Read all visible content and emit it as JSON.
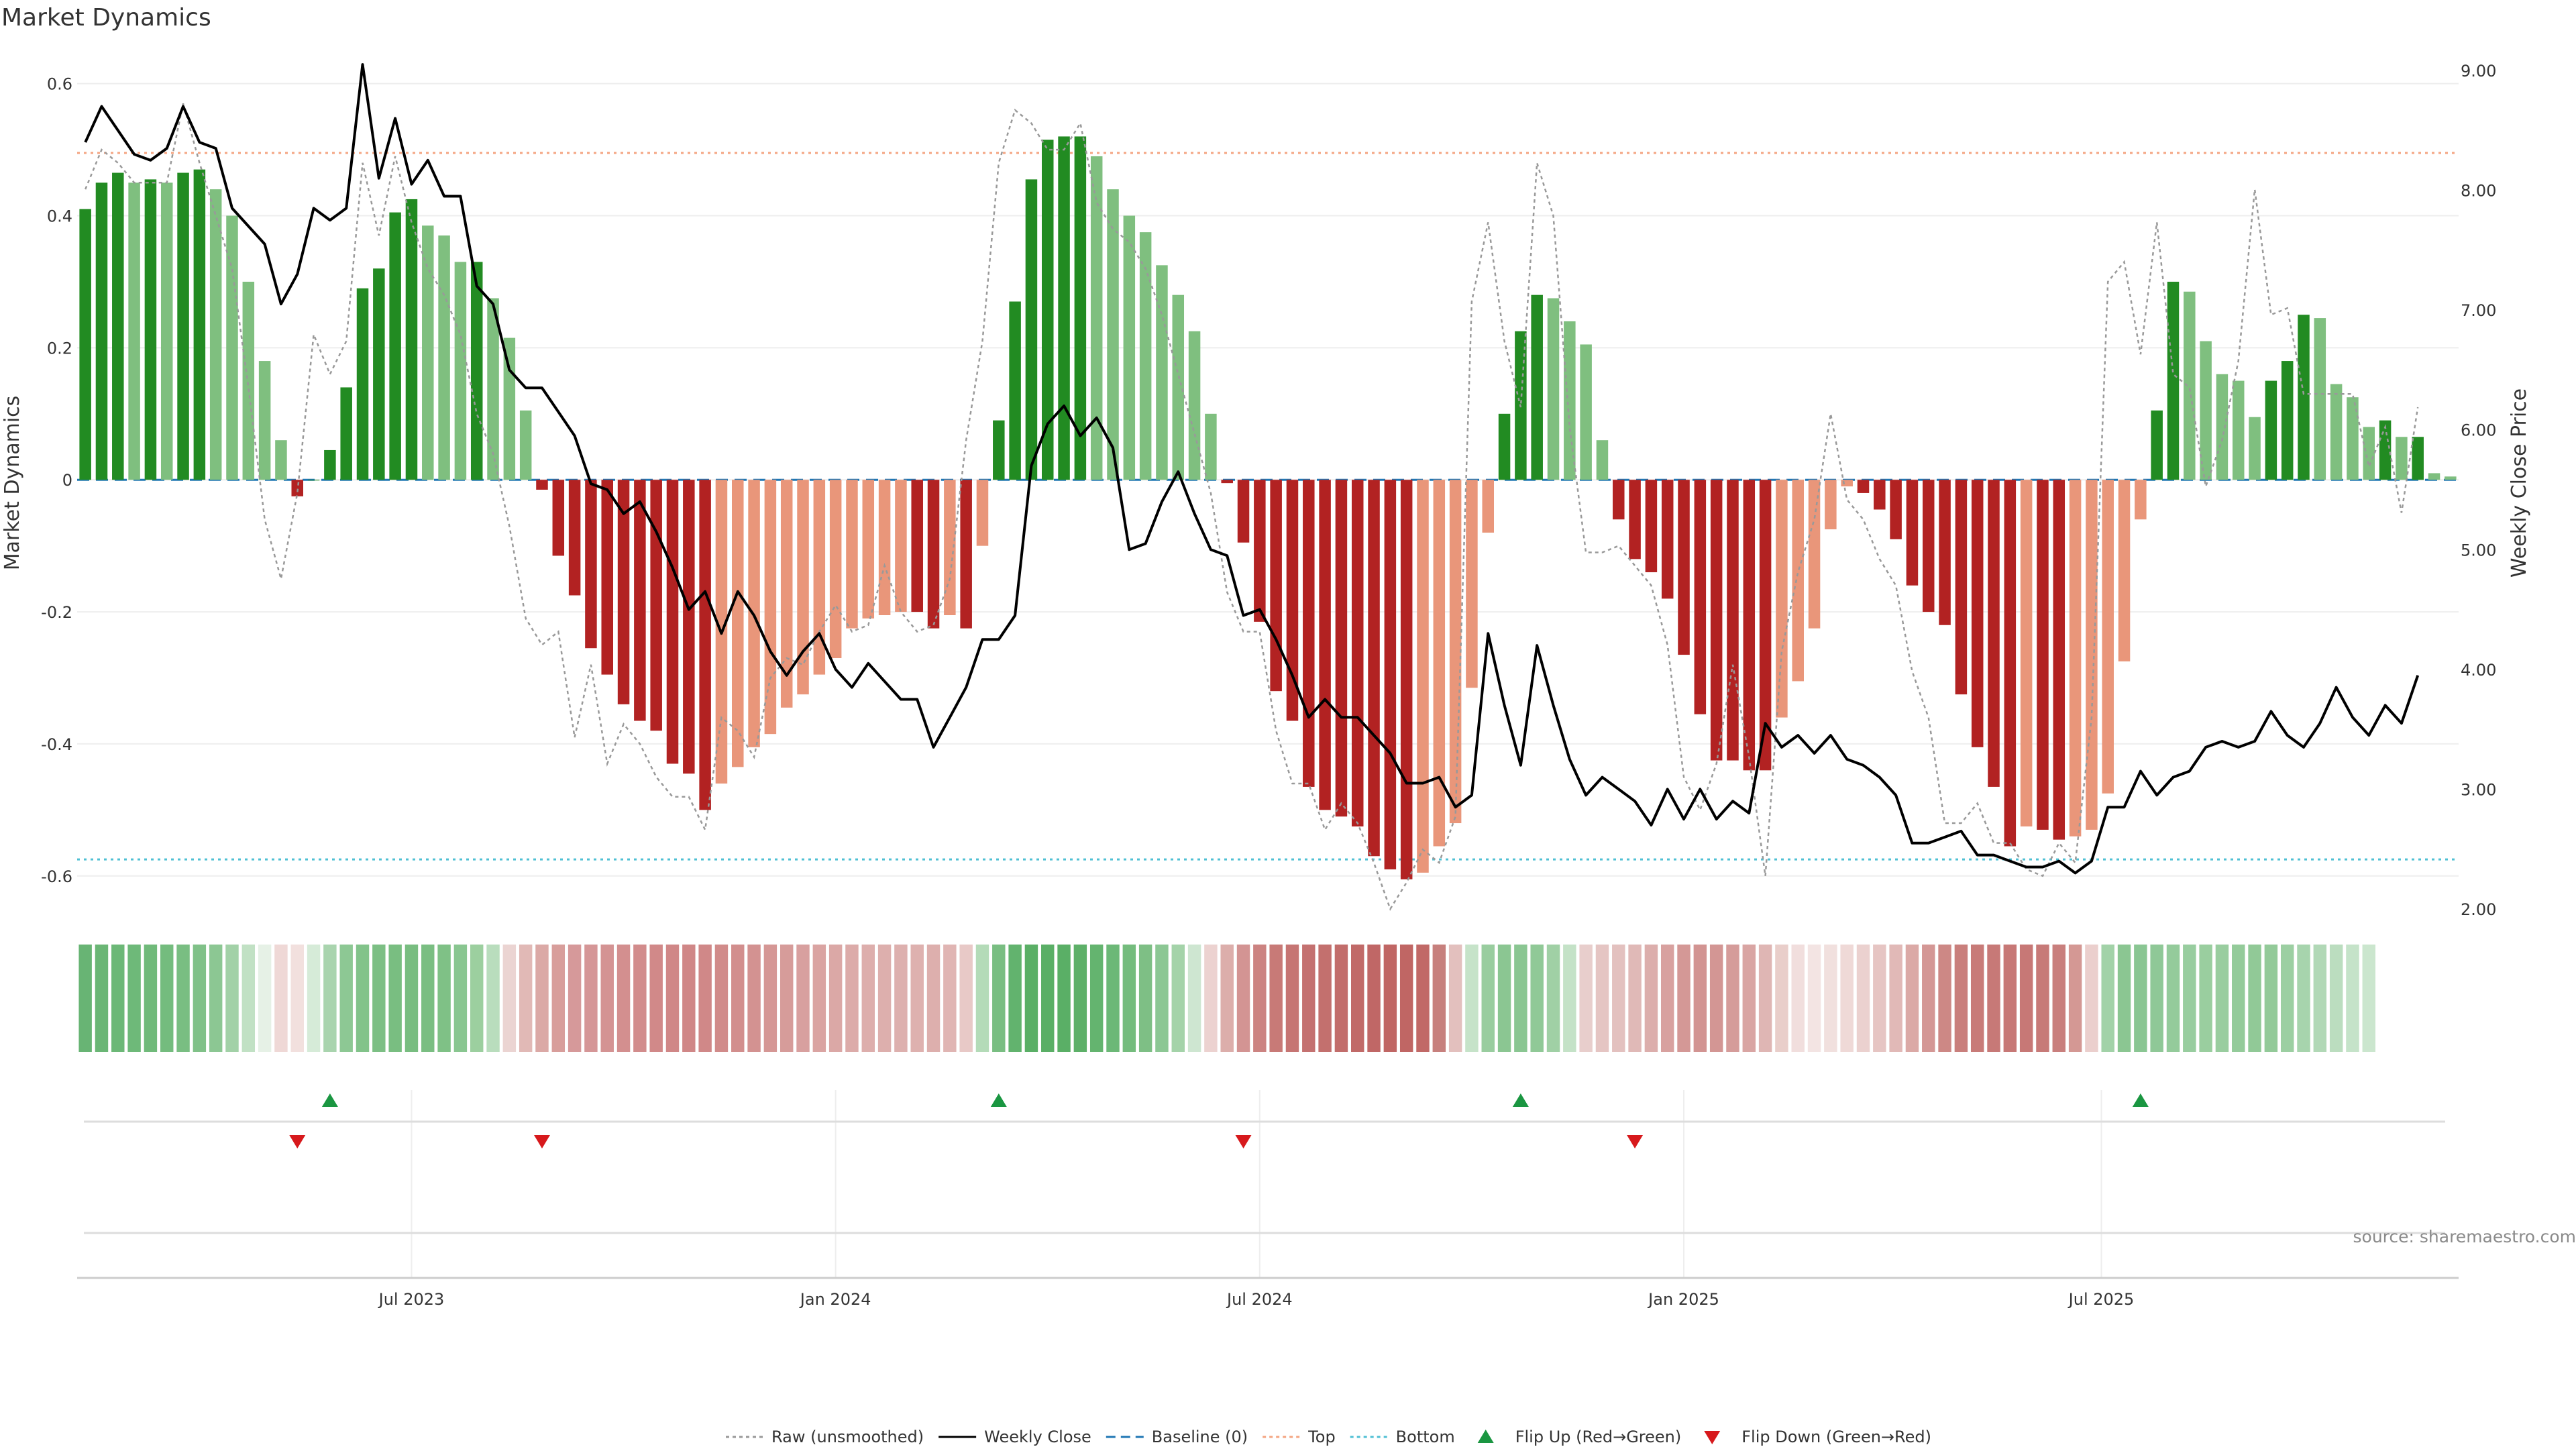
{
  "chart_data": {
    "type": "bar+line",
    "title": "Market Dynamics",
    "ylabel_left": "Market Dynamics",
    "ylabel_right": "Weekly Close Price",
    "ylim_left": [
      -0.65,
      0.62
    ],
    "ylim_right": [
      2.0,
      9.0
    ],
    "left_ticks": [
      {
        "label": "0.6",
        "value": 0.6
      },
      {
        "label": "0.4",
        "value": 0.4
      },
      {
        "label": "0.2",
        "value": 0.2
      },
      {
        "label": "0",
        "value": 0
      },
      {
        "label": "-0.2",
        "value": -0.2
      },
      {
        "label": "-0.4",
        "value": -0.4
      },
      {
        "label": "-0.6",
        "value": -0.6
      }
    ],
    "right_ticks": [
      {
        "label": "9.00",
        "value": 9
      },
      {
        "label": "8.00",
        "value": 8
      },
      {
        "label": "7.00",
        "value": 7
      },
      {
        "label": "6.00",
        "value": 6
      },
      {
        "label": "5.00",
        "value": 5
      },
      {
        "label": "4.00",
        "value": 4
      },
      {
        "label": "3.00",
        "value": 3
      },
      {
        "label": "2.00",
        "value": 2
      }
    ],
    "x_ticks": [
      {
        "label": "Jul 2023",
        "index": 20
      },
      {
        "label": "Jan 2024",
        "index": 46
      },
      {
        "label": "Jul 2024",
        "index": 72
      },
      {
        "label": "Jan 2025",
        "index": 98
      },
      {
        "label": "Jul 2025",
        "index": 123.6
      }
    ],
    "reference_lines": {
      "top": 0.495,
      "bottom": -0.575,
      "baseline": 0
    },
    "bars": [
      0.41,
      0.45,
      0.465,
      0.45,
      0.455,
      0.45,
      0.465,
      0.47,
      0.44,
      0.4,
      0.3,
      0.18,
      0.06,
      -0.025,
      0,
      0.045,
      0.14,
      0.29,
      0.32,
      0.405,
      0.425,
      0.385,
      0.37,
      0.33,
      0.33,
      0.275,
      0.215,
      0.105,
      -0.015,
      -0.115,
      -0.175,
      -0.255,
      -0.295,
      -0.34,
      -0.365,
      -0.38,
      -0.43,
      -0.445,
      -0.5,
      -0.46,
      -0.435,
      -0.405,
      -0.385,
      -0.345,
      -0.325,
      -0.295,
      -0.27,
      -0.225,
      -0.21,
      -0.205,
      -0.2,
      -0.2,
      -0.225,
      -0.205,
      -0.225,
      -0.1,
      0.09,
      0.27,
      0.455,
      0.515,
      0.52,
      0.52,
      0.49,
      0.44,
      0.4,
      0.375,
      0.325,
      0.28,
      0.225,
      0.1,
      -0.005,
      -0.095,
      -0.215,
      -0.32,
      -0.365,
      -0.465,
      -0.5,
      -0.51,
      -0.525,
      -0.57,
      -0.59,
      -0.605,
      -0.595,
      -0.555,
      -0.52,
      -0.315,
      -0.08,
      0.1,
      0.225,
      0.28,
      0.275,
      0.24,
      0.205,
      0.06,
      -0.06,
      -0.12,
      -0.14,
      -0.18,
      -0.265,
      -0.355,
      -0.425,
      -0.425,
      -0.44,
      -0.44,
      -0.36,
      -0.305,
      -0.225,
      -0.075,
      -0.01,
      -0.02,
      -0.045,
      -0.09,
      -0.16,
      -0.2,
      -0.22,
      -0.325,
      -0.405,
      -0.465,
      -0.555,
      -0.525,
      -0.53,
      -0.545,
      -0.54,
      -0.53,
      -0.475,
      -0.275,
      -0.06,
      0.105,
      0.3,
      0.285,
      0.21,
      0.16,
      0.15,
      0.095,
      0.15,
      0.18,
      0.25,
      0.245,
      0.145,
      0.125,
      0.08,
      0.09,
      0.065,
      0.065,
      0.01,
      0.005
    ],
    "weekly_close": [
      8.4,
      8.7,
      8.5,
      8.3,
      8.25,
      8.35,
      8.7,
      8.4,
      8.35,
      7.85,
      7.7,
      7.55,
      7.05,
      7.3,
      7.85,
      7.75,
      7.85,
      9.05,
      8.1,
      8.6,
      8.05,
      8.25,
      7.95,
      7.95,
      7.2,
      7.05,
      6.5,
      6.35,
      6.35,
      6.15,
      5.95,
      5.55,
      5.5,
      5.3,
      5.4,
      5.15,
      4.85,
      4.5,
      4.65,
      4.3,
      4.65,
      4.45,
      4.15,
      3.95,
      4.15,
      4.3,
      4.0,
      3.85,
      4.05,
      3.9,
      3.75,
      3.75,
      3.35,
      3.6,
      3.85,
      4.25,
      4.25,
      4.45,
      5.7,
      6.05,
      6.2,
      5.95,
      6.1,
      5.85,
      5.0,
      5.05,
      5.4,
      5.65,
      5.3,
      5.0,
      4.95,
      4.45,
      4.5,
      4.25,
      3.95,
      3.6,
      3.75,
      3.6,
      3.6,
      3.45,
      3.3,
      3.05,
      3.05,
      3.1,
      2.85,
      2.95,
      4.3,
      3.7,
      3.2,
      4.2,
      3.7,
      3.25,
      2.95,
      3.1,
      3.0,
      2.9,
      2.7,
      3.0,
      2.75,
      3.0,
      2.75,
      2.9,
      2.8,
      3.55,
      3.35,
      3.45,
      3.3,
      3.45,
      3.25,
      3.2,
      3.1,
      2.95,
      2.55,
      2.55,
      2.6,
      2.65,
      2.45,
      2.45,
      2.4,
      2.35,
      2.35,
      2.4,
      2.3,
      2.4,
      2.85,
      2.85,
      3.15,
      2.95,
      3.1,
      3.15,
      3.35,
      3.4,
      3.35,
      3.4,
      3.65,
      3.45,
      3.35,
      3.55,
      3.85,
      3.6,
      3.45,
      3.7,
      3.55,
      3.95
    ],
    "raw": [
      0.44,
      0.5,
      0.48,
      0.45,
      0.45,
      0.45,
      0.57,
      0.48,
      0.4,
      0.32,
      0.14,
      -0.06,
      -0.15,
      -0.02,
      0.22,
      0.16,
      0.21,
      0.48,
      0.37,
      0.49,
      0.39,
      0.32,
      0.28,
      0.22,
      0.1,
      0.04,
      -0.07,
      -0.21,
      -0.25,
      -0.23,
      -0.39,
      -0.28,
      -0.43,
      -0.37,
      -0.4,
      -0.45,
      -0.48,
      -0.48,
      -0.53,
      -0.36,
      -0.38,
      -0.42,
      -0.3,
      -0.27,
      -0.28,
      -0.23,
      -0.19,
      -0.23,
      -0.22,
      -0.13,
      -0.2,
      -0.23,
      -0.22,
      -0.15,
      0.06,
      0.21,
      0.48,
      0.56,
      0.54,
      0.5,
      0.5,
      0.54,
      0.42,
      0.38,
      0.36,
      0.32,
      0.25,
      0.16,
      0.07,
      -0.02,
      -0.17,
      -0.23,
      -0.23,
      -0.38,
      -0.46,
      -0.46,
      -0.53,
      -0.49,
      -0.52,
      -0.58,
      -0.65,
      -0.61,
      -0.56,
      -0.58,
      -0.51,
      0.27,
      0.39,
      0.21,
      0.11,
      0.48,
      0.4,
      0.08,
      -0.11,
      -0.11,
      -0.1,
      -0.13,
      -0.16,
      -0.25,
      -0.45,
      -0.5,
      -0.43,
      -0.28,
      -0.42,
      -0.6,
      -0.26,
      -0.14,
      -0.06,
      0.1,
      -0.03,
      -0.06,
      -0.12,
      -0.16,
      -0.29,
      -0.36,
      -0.52,
      -0.52,
      -0.49,
      -0.55,
      -0.55,
      -0.59,
      -0.6,
      -0.55,
      -0.58,
      -0.36,
      0.3,
      0.33,
      0.19,
      0.39,
      0.16,
      0.14,
      -0.01,
      0.06,
      0.18,
      0.44,
      0.25,
      0.26,
      0.13,
      0.13,
      0.13,
      0.13,
      0.02,
      0.08,
      -0.05,
      0.11
    ],
    "heat_colors": [
      "#68b474",
      "#6ab675",
      "#6cb877",
      "#6eb979",
      "#70ba7a",
      "#74bc7e",
      "#79be82",
      "#80c188",
      "#8cc793",
      "#a2d1a7",
      "#c1e1c4",
      "#e6f1e6",
      "#efd8d6",
      "#f2e0de",
      "#d6ebd8",
      "#a9d4ae",
      "#8dc894",
      "#82c38a",
      "#7cbf84",
      "#79be81",
      "#78bd80",
      "#7abe82",
      "#7fc186",
      "#89c690",
      "#9ccf9f",
      "#b9ddbd",
      "#ebd4d2",
      "#e1b9b6",
      "#dba9a6",
      "#d89e9b",
      "#d6999a",
      "#d59697",
      "#d49393",
      "#d38f8f",
      "#d28c8c",
      "#d18989",
      "#d08787",
      "#d08787",
      "#d08888",
      "#d18b8a",
      "#d28e8d",
      "#d39291",
      "#d59795",
      "#d69c9a",
      "#d8a09f",
      "#daa4a2",
      "#dba8a6",
      "#dcaba9",
      "#ddaeac",
      "#ddafad",
      "#ddb0ae",
      "#deb1af",
      "#ddafad",
      "#e0b5b3",
      "#e8c9c7",
      "#b4dbb8",
      "#79be82",
      "#62b36e",
      "#5aaf66",
      "#5aaf66",
      "#5aaf66",
      "#5db068",
      "#64b46f",
      "#6cb877",
      "#74bc7d",
      "#7ebf85",
      "#8cc794",
      "#a4d3a9",
      "#cee6d1",
      "#ecd2d0",
      "#dcaeab",
      "#d39493",
      "#cc8381",
      "#c87a77",
      "#c67573",
      "#c47170",
      "#c3706e",
      "#c26d6b",
      "#c16a68",
      "#c06766",
      "#c06664",
      "#c06664",
      "#c16967",
      "#c7807d",
      "#e3c0be",
      "#c6e3c9",
      "#99cd9f",
      "#8bc692",
      "#8ac692",
      "#90c997",
      "#a0d0a5",
      "#c4e2c7",
      "#e8cecc",
      "#e5c5c3",
      "#e3c1bf",
      "#e0b9b7",
      "#dcaeac",
      "#d8a19f",
      "#d49896",
      "#d29492",
      "#d39694",
      "#d59c9a",
      "#d9a5a3",
      "#dfb6b4",
      "#e9ceca",
      "#f1dedd",
      "#f3e4e3",
      "#f1e0de",
      "#efd9d7",
      "#ebd1cf",
      "#e6c5c3",
      "#e1b9b7",
      "#dba9a6",
      "#d49795",
      "#cd8885",
      "#c97f7c",
      "#c87b78",
      "#c77977",
      "#c77876",
      "#c77876",
      "#c77a78",
      "#c97f7d",
      "#d49894",
      "#ebcfcd",
      "#a2d2a8",
      "#8bc692",
      "#8ac693",
      "#8fc897",
      "#94cb9b",
      "#98cd9f",
      "#9ace9f",
      "#99cd9f",
      "#94cb9a",
      "#91c997",
      "#93ca99",
      "#9ccfa2",
      "#a7d4ad",
      "#b1d8b6",
      "#bbddbf",
      "#c5e3c9",
      "#cbe6ce"
    ],
    "flip_up_indices": [
      15,
      56,
      88,
      126
    ],
    "flip_down_indices": [
      13,
      28,
      71,
      95
    ],
    "colors": {
      "bull_strong": "#228b22",
      "bull_weak": "#7fbf7f",
      "bear_strong": "#b22222",
      "bear_weak": "#e9967a",
      "weekly_close": "#000000",
      "raw": "#999999",
      "baseline": "#1f77b4",
      "top": "#f4a582",
      "bottom": "#4fc0d4",
      "flip_up": "#1a9641",
      "flip_down": "#d7191c",
      "grid": "#eeeeee"
    },
    "legend": [
      {
        "label": "Raw (unsmoothed)",
        "marker": "dotted-line",
        "color": "#999999"
      },
      {
        "label": "Weekly Close",
        "marker": "solid-line",
        "color": "#000000"
      },
      {
        "label": "Baseline (0)",
        "marker": "dashed-line",
        "color": "#1f77b4"
      },
      {
        "label": "Top",
        "marker": "dotted-line",
        "color": "#f4a582"
      },
      {
        "label": "Bottom",
        "marker": "dotted-line",
        "color": "#4fc0d4"
      },
      {
        "label": "Flip Up (Red→Green)",
        "marker": "triangle-up",
        "color": "#1a9641"
      },
      {
        "label": "Flip Down (Green→Red)",
        "marker": "triangle-down",
        "color": "#d7191c"
      }
    ],
    "source": "source: sharemaestro.com"
  }
}
